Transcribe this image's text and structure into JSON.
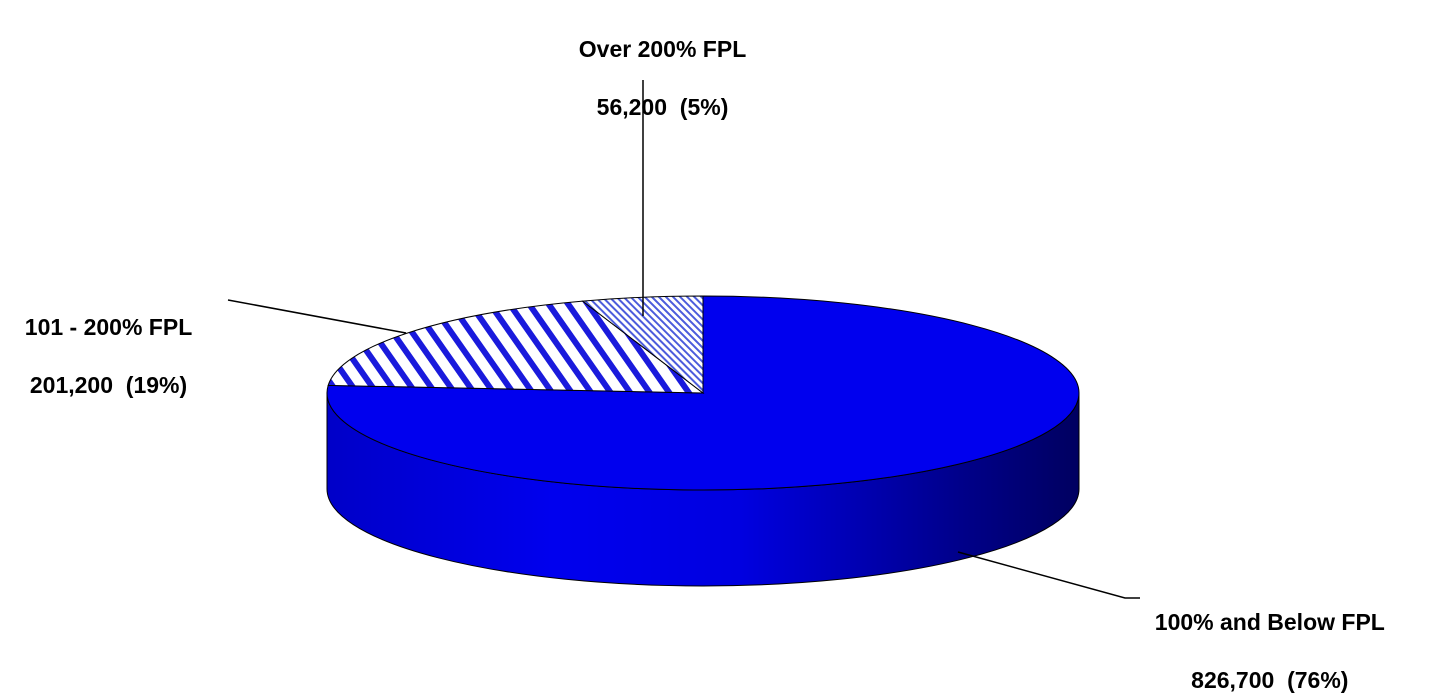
{
  "chart_data": {
    "type": "pie",
    "title": "",
    "style": "3d",
    "categories": [
      "100% and Below FPL",
      "101 - 200% FPL",
      "Over 200% FPL"
    ],
    "values": [
      826700,
      201200,
      56200
    ],
    "value_labels": [
      "826,700",
      "201,200",
      "56,200"
    ],
    "percent_labels": [
      "(76%)",
      "(19%)",
      "(5%)"
    ],
    "fills": [
      "solid",
      "diagonal-stripes",
      "fine-hatch"
    ],
    "colors": [
      "#0000ee",
      "#1a1adc",
      "#4c5cdc"
    ],
    "legend": "none"
  }
}
